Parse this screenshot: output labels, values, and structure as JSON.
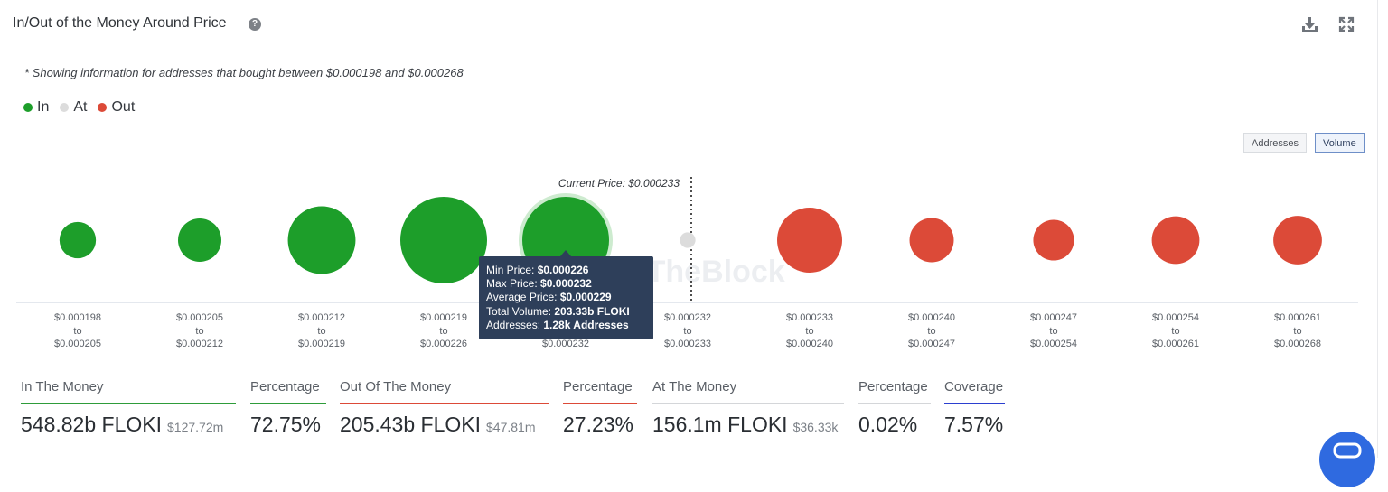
{
  "header": {
    "title": "In/Out of the Money Around Price",
    "help_icon": "question-circle-icon",
    "download_icon": "download-icon",
    "expand_icon": "expand-icon"
  },
  "note": "* Showing information for addresses that bought between $0.000198 and $0.000268",
  "legend": [
    {
      "label": "In",
      "color": "#1d9e2a"
    },
    {
      "label": "At",
      "color": "#dcdcdc"
    },
    {
      "label": "Out",
      "color": "#dc4a38"
    }
  ],
  "toggles": [
    {
      "label": "Addresses",
      "active": false
    },
    {
      "label": "Volume",
      "active": true
    }
  ],
  "watermark": "IntoTheBlock",
  "chart_data": {
    "type": "bubble",
    "current_price_label": "Current Price: $0.000233",
    "current_price": 0.000233,
    "colors": {
      "In": "#1d9e2a",
      "At": "#dcdcdc",
      "Out": "#dc4a38"
    },
    "buckets": [
      {
        "from": "$0.000198",
        "to_word": "to",
        "to": "$0.000205",
        "status": "In",
        "size": 0.42
      },
      {
        "from": "$0.000205",
        "to_word": "to",
        "to": "$0.000212",
        "status": "In",
        "size": 0.5
      },
      {
        "from": "$0.000212",
        "to_word": "to",
        "to": "$0.000219",
        "status": "In",
        "size": 0.78
      },
      {
        "from": "$0.000219",
        "to_word": "to",
        "to": "$0.000226",
        "status": "In",
        "size": 1.0
      },
      {
        "from": "$0.000226",
        "to_word": "to",
        "to": "$0.000232",
        "status": "In",
        "size": 1.0,
        "highlight": true
      },
      {
        "from": "$0.000232",
        "to_word": "to",
        "to": "$0.000233",
        "status": "At",
        "size": 0.18
      },
      {
        "from": "$0.000233",
        "to_word": "to",
        "to": "$0.000240",
        "status": "Out",
        "size": 0.75
      },
      {
        "from": "$0.000240",
        "to_word": "to",
        "to": "$0.000247",
        "status": "Out",
        "size": 0.51
      },
      {
        "from": "$0.000247",
        "to_word": "to",
        "to": "$0.000254",
        "status": "Out",
        "size": 0.47
      },
      {
        "from": "$0.000254",
        "to_word": "to",
        "to": "$0.000261",
        "status": "Out",
        "size": 0.55
      },
      {
        "from": "$0.000261",
        "to_word": "to",
        "to": "$0.000268",
        "status": "Out",
        "size": 0.56
      }
    ]
  },
  "tooltip": {
    "min_label": "Min Price: ",
    "min_value": "$0.000226",
    "max_label": "Max Price: ",
    "max_value": "$0.000232",
    "avg_label": "Average Price: ",
    "avg_value": "$0.000229",
    "vol_label": "Total Volume: ",
    "vol_value": "203.33b FLOKI",
    "addr_label": "Addresses: ",
    "addr_value": "1.28k Addresses"
  },
  "stats": [
    {
      "label": "In The Money",
      "value": "548.82b FLOKI",
      "sub": "$127.72m",
      "color": "#2e9c3a"
    },
    {
      "label": "Percentage",
      "value": "72.75%",
      "sub": "",
      "color": "#2e9c3a"
    },
    {
      "label": "Out Of The Money",
      "value": "205.43b FLOKI",
      "sub": "$47.81m",
      "color": "#dc4a38"
    },
    {
      "label": "Percentage",
      "value": "27.23%",
      "sub": "",
      "color": "#dc4a38"
    },
    {
      "label": "At The Money",
      "value": "156.1m FLOKI",
      "sub": "$36.33k",
      "color": "#d4d6d9"
    },
    {
      "label": "Percentage",
      "value": "0.02%",
      "sub": "",
      "color": "#d4d6d9"
    },
    {
      "label": "Coverage",
      "value": "7.57%",
      "sub": "",
      "color": "#2b3fd0"
    }
  ]
}
